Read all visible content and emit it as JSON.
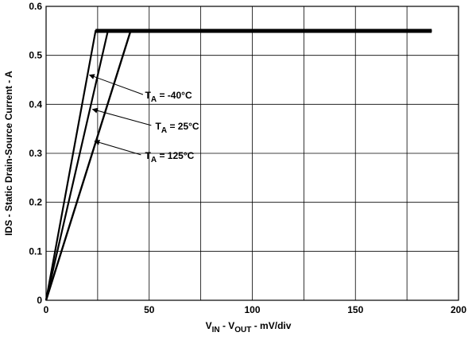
{
  "chart_data": {
    "type": "line",
    "xlim": [
      0,
      200
    ],
    "ylim": [
      0,
      0.6
    ],
    "x_ticks": [
      0,
      50,
      100,
      150,
      200
    ],
    "y_ticks": [
      0,
      0.1,
      0.2,
      0.3,
      0.4,
      0.5,
      0.6
    ],
    "x_tick_labels": [
      "0",
      "50",
      "100",
      "150",
      "200"
    ],
    "y_tick_labels": [
      "0",
      "0.1",
      "0.2",
      "0.3",
      "0.4",
      "0.5",
      "0.6"
    ],
    "x_grid_lines": [
      25,
      50,
      75,
      100,
      125,
      150,
      175
    ],
    "y_grid_lines": [
      0.1,
      0.2,
      0.3,
      0.4,
      0.5
    ],
    "grid": true,
    "xlabel": {
      "parts": [
        {
          "text": "V",
          "sub": false
        },
        {
          "text": "IN",
          "sub": true
        },
        {
          "text": " - V",
          "sub": false
        },
        {
          "text": "OUT",
          "sub": true
        },
        {
          "text": " - mV/div",
          "sub": false
        }
      ]
    },
    "ylabel": "IDS - Static Drain-Source Current - A",
    "series": [
      {
        "x": [
          0,
          24,
          187
        ],
        "y": [
          0,
          0.55,
          0.55
        ]
      },
      {
        "x": [
          0,
          30,
          187
        ],
        "y": [
          0,
          0.55,
          0.55
        ]
      },
      {
        "x": [
          0,
          41,
          187
        ],
        "y": [
          0,
          0.55,
          0.55
        ]
      }
    ],
    "annotations": [
      {
        "main": "T",
        "sub": "A",
        "rest": " = -40°C",
        "text_x": 48,
        "text_y": 0.418,
        "arrow_from": [
          47,
          0.42
        ],
        "arrow_to": [
          21,
          0.46
        ]
      },
      {
        "main": "T",
        "sub": "A",
        "rest": " = 25°C",
        "text_x": 53,
        "text_y": 0.355,
        "arrow_from": [
          51,
          0.357
        ],
        "arrow_to": [
          22.5,
          0.39
        ]
      },
      {
        "main": "T",
        "sub": "A",
        "rest": " = 125°C",
        "text_x": 48,
        "text_y": 0.295,
        "arrow_from": [
          46,
          0.297
        ],
        "arrow_to": [
          23.5,
          0.325
        ]
      }
    ]
  }
}
